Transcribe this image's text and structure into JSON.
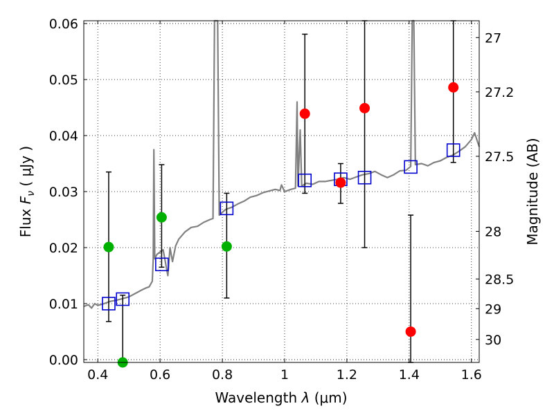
{
  "chart_data": {
    "type": "scatter",
    "xlabel_prefix": "Wavelength",
    "xlabel_symbol": "λ",
    "xlabel_unit": "(μm)",
    "ylabel_prefix": "Flux",
    "ylabel_symbol": "F",
    "ylabel_subscript": "ν",
    "ylabel_unit": "( μJy )",
    "y2label": "Magnitude (AB)",
    "xlim": [
      0.355,
      1.625
    ],
    "ylim": [
      -0.0005,
      0.0605
    ],
    "xticks": [
      0.4,
      0.6,
      0.8,
      1.0,
      1.2,
      1.4,
      1.6
    ],
    "xtick_labels": [
      "0.4",
      "0.6",
      "0.8",
      "1",
      "1.2",
      "1.4",
      "1.6"
    ],
    "yticks": [
      0.0,
      0.01,
      0.02,
      0.03,
      0.04,
      0.05,
      0.06
    ],
    "ytick_labels": [
      "0.00",
      "0.01",
      "0.02",
      "0.03",
      "0.04",
      "0.05",
      "0.06"
    ],
    "y2ticks": [
      {
        "label": "27",
        "flux": 0.0575
      },
      {
        "label": "27.2",
        "flux": 0.0478
      },
      {
        "label": "27.5",
        "flux": 0.0363
      },
      {
        "label": "28",
        "flux": 0.0229
      },
      {
        "label": "28.5",
        "flux": 0.0144
      },
      {
        "label": "29",
        "flux": 0.0091
      },
      {
        "label": "30",
        "flux": 0.0036
      }
    ],
    "grid": true,
    "colors": {
      "spectrum": "#808080",
      "green": "#00b000",
      "red": "#ff0000",
      "model": "#0000cc",
      "errorbar": "#000000"
    },
    "spectrum": [
      [
        0.355,
        0.0095
      ],
      [
        0.37,
        0.0098
      ],
      [
        0.38,
        0.0092
      ],
      [
        0.39,
        0.01
      ],
      [
        0.4,
        0.0097
      ],
      [
        0.42,
        0.01
      ],
      [
        0.44,
        0.0104
      ],
      [
        0.46,
        0.0106
      ],
      [
        0.48,
        0.0109
      ],
      [
        0.5,
        0.0112
      ],
      [
        0.52,
        0.0118
      ],
      [
        0.54,
        0.0124
      ],
      [
        0.555,
        0.0128
      ],
      [
        0.565,
        0.013
      ],
      [
        0.575,
        0.014
      ],
      [
        0.578,
        0.018
      ],
      [
        0.58,
        0.0375
      ],
      [
        0.583,
        0.018
      ],
      [
        0.59,
        0.0188
      ],
      [
        0.61,
        0.0196
      ],
      [
        0.625,
        0.015
      ],
      [
        0.632,
        0.02
      ],
      [
        0.64,
        0.0175
      ],
      [
        0.65,
        0.0203
      ],
      [
        0.66,
        0.0215
      ],
      [
        0.68,
        0.0228
      ],
      [
        0.7,
        0.0236
      ],
      [
        0.72,
        0.0238
      ],
      [
        0.74,
        0.0245
      ],
      [
        0.76,
        0.025
      ],
      [
        0.77,
        0.0252
      ],
      [
        0.775,
        0.0605
      ],
      [
        0.785,
        0.0605
      ],
      [
        0.79,
        0.0258
      ],
      [
        0.81,
        0.0268
      ],
      [
        0.83,
        0.0272
      ],
      [
        0.85,
        0.0278
      ],
      [
        0.87,
        0.0283
      ],
      [
        0.89,
        0.029
      ],
      [
        0.91,
        0.0293
      ],
      [
        0.93,
        0.0298
      ],
      [
        0.95,
        0.0301
      ],
      [
        0.97,
        0.0304
      ],
      [
        0.985,
        0.0302
      ],
      [
        0.99,
        0.0312
      ],
      [
        1.0,
        0.03
      ],
      [
        1.02,
        0.0304
      ],
      [
        1.035,
        0.0306
      ],
      [
        1.04,
        0.046
      ],
      [
        1.043,
        0.031
      ],
      [
        1.05,
        0.041
      ],
      [
        1.055,
        0.031
      ],
      [
        1.07,
        0.0315
      ],
      [
        1.09,
        0.0313
      ],
      [
        1.11,
        0.0318
      ],
      [
        1.13,
        0.0318
      ],
      [
        1.15,
        0.032
      ],
      [
        1.17,
        0.0322
      ],
      [
        1.19,
        0.0325
      ],
      [
        1.21,
        0.0322
      ],
      [
        1.23,
        0.0326
      ],
      [
        1.25,
        0.033
      ],
      [
        1.27,
        0.0332
      ],
      [
        1.29,
        0.0336
      ],
      [
        1.31,
        0.033
      ],
      [
        1.33,
        0.0325
      ],
      [
        1.35,
        0.033
      ],
      [
        1.37,
        0.0337
      ],
      [
        1.39,
        0.0338
      ],
      [
        1.405,
        0.0345
      ],
      [
        1.41,
        0.0605
      ],
      [
        1.415,
        0.0605
      ],
      [
        1.42,
        0.0348
      ],
      [
        1.44,
        0.035
      ],
      [
        1.46,
        0.0346
      ],
      [
        1.48,
        0.0352
      ],
      [
        1.5,
        0.0355
      ],
      [
        1.52,
        0.0361
      ],
      [
        1.54,
        0.0365
      ],
      [
        1.56,
        0.0372
      ],
      [
        1.58,
        0.038
      ],
      [
        1.6,
        0.0393
      ],
      [
        1.61,
        0.0405
      ],
      [
        1.625,
        0.038
      ]
    ],
    "green_points": [
      {
        "x": 0.435,
        "y": 0.0201,
        "err_lo": 0.0068,
        "err_hi": 0.0335
      },
      {
        "x": 0.48,
        "y": -0.0005,
        "err_lo": -0.0005,
        "err_hi": 0.0115
      },
      {
        "x": 0.605,
        "y": 0.0254,
        "err_lo": 0.0165,
        "err_hi": 0.0348
      },
      {
        "x": 0.814,
        "y": 0.0202,
        "err_lo": 0.011,
        "err_hi": 0.0297
      }
    ],
    "red_points": [
      {
        "x": 1.065,
        "y": 0.0439,
        "err_lo": 0.0297,
        "err_hi": 0.0581
      },
      {
        "x": 1.18,
        "y": 0.0316,
        "err_lo": 0.0279,
        "err_hi": 0.035
      },
      {
        "x": 1.257,
        "y": 0.0449,
        "err_lo": 0.02,
        "err_hi": 0.0605
      },
      {
        "x": 1.405,
        "y": 0.005,
        "err_lo": -0.0005,
        "err_hi": 0.0258
      },
      {
        "x": 1.542,
        "y": 0.0486,
        "err_lo": 0.0352,
        "err_hi": 0.0605
      }
    ],
    "model_points": [
      {
        "x": 0.435,
        "y": 0.01
      },
      {
        "x": 0.48,
        "y": 0.0108
      },
      {
        "x": 0.606,
        "y": 0.017
      },
      {
        "x": 0.814,
        "y": 0.027
      },
      {
        "x": 1.065,
        "y": 0.032
      },
      {
        "x": 1.18,
        "y": 0.0322
      },
      {
        "x": 1.257,
        "y": 0.0325
      },
      {
        "x": 1.405,
        "y": 0.0344
      },
      {
        "x": 1.542,
        "y": 0.0374
      }
    ]
  }
}
